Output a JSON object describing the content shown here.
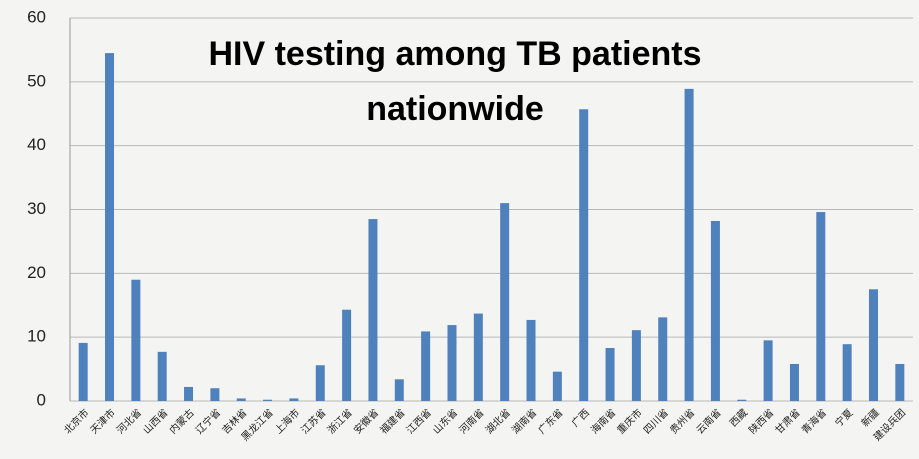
{
  "chart_data": {
    "type": "bar",
    "title": [
      "HIV testing among TB patients",
      "nationwide"
    ],
    "categories": [
      "北京市",
      "天津市",
      "河北省",
      "山西省",
      "内蒙古",
      "辽宁省",
      "吉林省",
      "黑龙江省",
      "上海市",
      "江苏省",
      "浙江省",
      "安徽省",
      "福建省",
      "江西省",
      "山东省",
      "河南省",
      "湖北省",
      "湖南省",
      "广东省",
      "广西",
      "海南省",
      "重庆市",
      "四川省",
      "贵州省",
      "云南省",
      "西藏",
      "陕西省",
      "甘肃省",
      "青海省",
      "宁夏",
      "新疆",
      "建设兵团"
    ],
    "values": [
      9.1,
      54.5,
      19,
      7.7,
      2.2,
      2,
      0.4,
      0.2,
      0.4,
      5.6,
      14.3,
      28.5,
      3.4,
      10.9,
      11.9,
      13.7,
      31,
      12.7,
      4.6,
      45.7,
      8.3,
      11.1,
      13.1,
      48.9,
      28.2,
      0.2,
      9.5,
      5.8,
      29.6,
      8.9,
      17.5,
      5.8
    ],
    "color": "#4f81bd",
    "ylim": [
      0,
      60
    ],
    "yticks": [
      0,
      10,
      20,
      30,
      40,
      50,
      60
    ],
    "grid": true
  }
}
